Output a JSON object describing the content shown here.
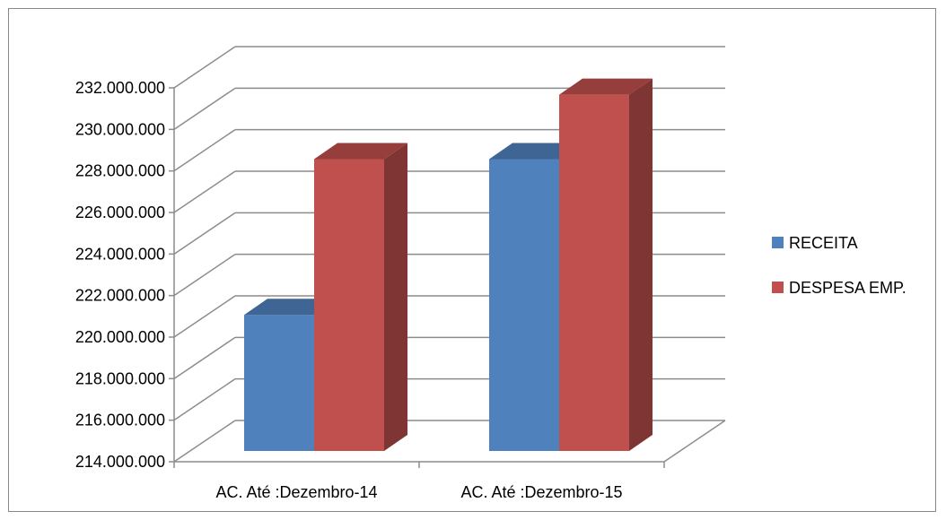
{
  "chart_data": {
    "type": "bar",
    "categories": [
      "AC. Até :Dezembro-14",
      "AC. Até :Dezembro-15"
    ],
    "series": [
      {
        "name": "RECEITA",
        "values": [
          221200000,
          228700000
        ],
        "color": "#4F81BD"
      },
      {
        "name": "DESPESA EMP.",
        "values": [
          228700000,
          231800000
        ],
        "color": "#C0504D"
      }
    ],
    "ylim": [
      214000000,
      232000000
    ],
    "yticks": [
      "214.000.000",
      "216.000.000",
      "218.000.000",
      "220.000.000",
      "222.000.000",
      "224.000.000",
      "226.000.000",
      "228.000.000",
      "230.000.000",
      "232.000.000"
    ],
    "ytick_values": [
      214000000,
      216000000,
      218000000,
      220000000,
      222000000,
      224000000,
      226000000,
      228000000,
      230000000,
      232000000
    ],
    "three_d": true,
    "grid": true,
    "legend_position": "right",
    "title": "",
    "xlabel": "",
    "ylabel": ""
  }
}
